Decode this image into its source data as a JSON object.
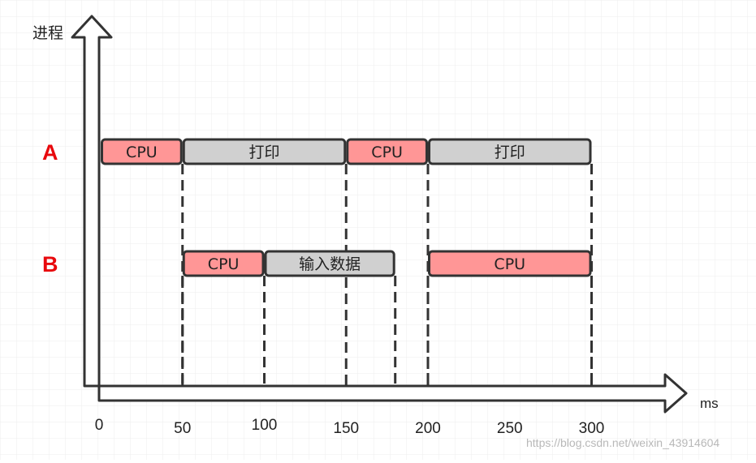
{
  "y_axis_label": "进程",
  "x_axis_unit": "ms",
  "x_ticks": [
    "0",
    "50",
    "100",
    "150",
    "200",
    "250",
    "300"
  ],
  "processes": [
    {
      "name": "A",
      "segments": [
        {
          "label": "CPU",
          "start": 0,
          "end": 50,
          "kind": "cpu"
        },
        {
          "label": "打印",
          "start": 50,
          "end": 150,
          "kind": "io"
        },
        {
          "label": "CPU",
          "start": 150,
          "end": 200,
          "kind": "cpu"
        },
        {
          "label": "打印",
          "start": 200,
          "end": 300,
          "kind": "io"
        }
      ]
    },
    {
      "name": "B",
      "segments": [
        {
          "label": "CPU",
          "start": 50,
          "end": 100,
          "kind": "cpu"
        },
        {
          "label": "输入数据",
          "start": 100,
          "end": 180,
          "kind": "io"
        },
        {
          "label": "CPU",
          "start": 200,
          "end": 300,
          "kind": "cpu"
        }
      ]
    }
  ],
  "colors": {
    "cpu": "#ff9696",
    "io": "#d0d0d0",
    "process_label": "#e8090d",
    "stroke": "#333333"
  },
  "watermark": "https://blog.csdn.net/weixin_43914604"
}
